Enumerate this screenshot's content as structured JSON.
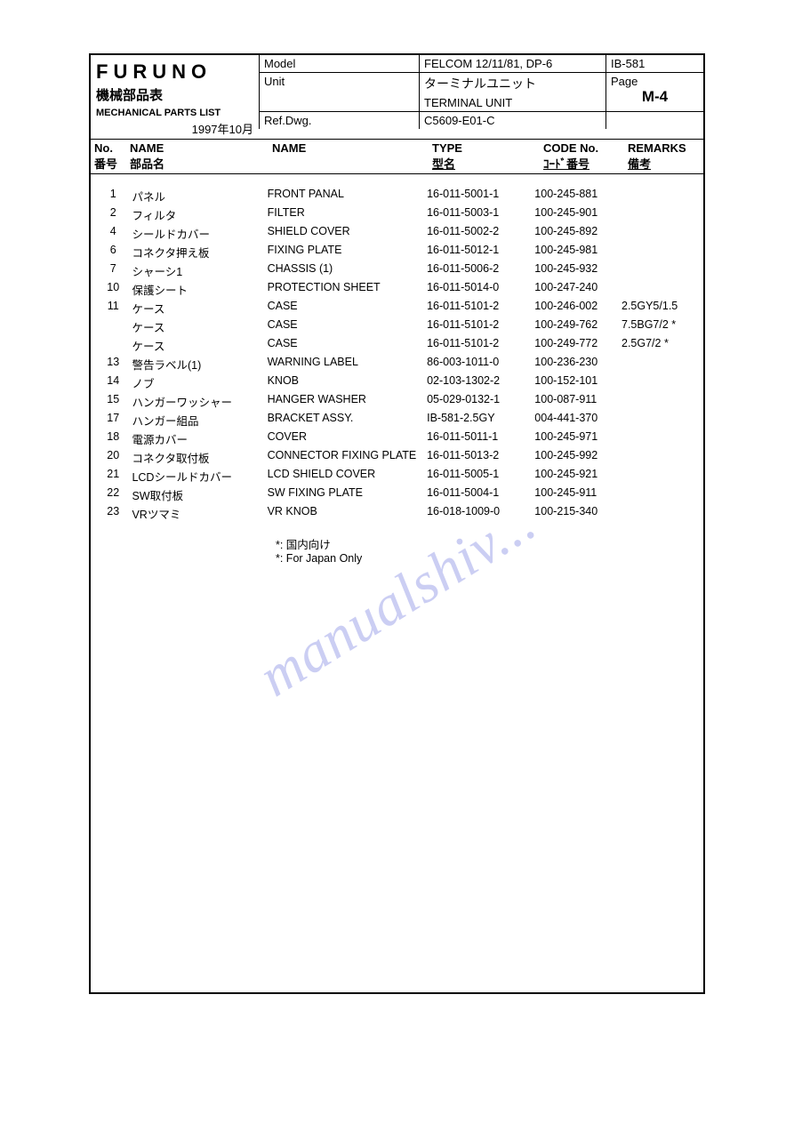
{
  "header": {
    "brand": "FURUNO",
    "jp_title": "機械部品表",
    "en_title": "MECHANICAL PARTS LIST",
    "date": "1997年10月",
    "model_label": "Model",
    "model_value": "FELCOM 12/11/81, DP-6",
    "ib_value": "IB-581",
    "unit_label": "Unit",
    "unit_jp": "ターミナルユニット",
    "unit_en": "TERMINAL UNIT",
    "page_label": "Page",
    "page_value": "M-4",
    "refdwg_label": "Ref.Dwg.",
    "refdwg_value": "C5609-E01-C"
  },
  "columns": {
    "no_en": "No.",
    "no_jp": "番号",
    "name_jp_hdr_en": "NAME",
    "name_jp_hdr_jp": "部品名",
    "name_en_hdr": "NAME",
    "type_en": "TYPE",
    "type_jp": "型名",
    "code_en": "CODE No.",
    "code_jp": "ｺｰﾄﾞ番号",
    "remarks_en": "REMARKS",
    "remarks_jp": "備考"
  },
  "rows": [
    {
      "no": "1",
      "jp": "パネル",
      "en": "FRONT PANAL",
      "type": "16-011-5001-1",
      "code": "100-245-881",
      "rem": ""
    },
    {
      "no": "2",
      "jp": "フィルタ",
      "en": "FILTER",
      "type": "16-011-5003-1",
      "code": "100-245-901",
      "rem": ""
    },
    {
      "no": "4",
      "jp": "シールドカバー",
      "en": "SHIELD COVER",
      "type": "16-011-5002-2",
      "code": "100-245-892",
      "rem": ""
    },
    {
      "no": "6",
      "jp": "コネクタ押え板",
      "en": "FIXING PLATE",
      "type": "16-011-5012-1",
      "code": "100-245-981",
      "rem": ""
    },
    {
      "no": "7",
      "jp": "シャーシ1",
      "en": "CHASSIS (1)",
      "type": "16-011-5006-2",
      "code": "100-245-932",
      "rem": ""
    },
    {
      "no": "10",
      "jp": "保護シート",
      "en": "PROTECTION SHEET",
      "type": "16-011-5014-0",
      "code": "100-247-240",
      "rem": ""
    },
    {
      "no": "11",
      "jp": "ケース",
      "en": "CASE",
      "type": "16-011-5101-2",
      "code": "100-246-002",
      "rem": "2.5GY5/1.5"
    },
    {
      "no": "",
      "jp": "ケース",
      "en": "CASE",
      "type": "16-011-5101-2",
      "code": "100-249-762",
      "rem": "7.5BG7/2 *"
    },
    {
      "no": "",
      "jp": "ケース",
      "en": "CASE",
      "type": "16-011-5101-2",
      "code": "100-249-772",
      "rem": "2.5G7/2 *"
    },
    {
      "no": "13",
      "jp": "警告ラベル(1)",
      "en": "WARNING LABEL",
      "type": "86-003-1011-0",
      "code": "100-236-230",
      "rem": ""
    },
    {
      "no": "14",
      "jp": "ノブ",
      "en": "KNOB",
      "type": "02-103-1302-2",
      "code": "100-152-101",
      "rem": ""
    },
    {
      "no": "15",
      "jp": "ハンガーワッシャー",
      "en": "HANGER WASHER",
      "type": "05-029-0132-1",
      "code": "100-087-911",
      "rem": ""
    },
    {
      "no": "17",
      "jp": "ハンガー組品",
      "en": "BRACKET ASSY.",
      "type": "IB-581-2.5GY",
      "code": "004-441-370",
      "rem": ""
    },
    {
      "no": "18",
      "jp": "電源カバー",
      "en": "COVER",
      "type": "16-011-5011-1",
      "code": "100-245-971",
      "rem": ""
    },
    {
      "no": "20",
      "jp": "コネクタ取付板",
      "en": "CONNECTOR FIXING PLATE",
      "type": "16-011-5013-2",
      "code": "100-245-992",
      "rem": ""
    },
    {
      "no": "21",
      "jp": "LCDシールドカバー",
      "en": "LCD SHIELD COVER",
      "type": "16-011-5005-1",
      "code": "100-245-921",
      "rem": ""
    },
    {
      "no": "22",
      "jp": "SW取付板",
      "en": "SW FIXING PLATE",
      "type": "16-011-5004-1",
      "code": "100-245-911",
      "rem": ""
    },
    {
      "no": "23",
      "jp": "VRツマミ",
      "en": "VR KNOB",
      "type": "16-018-1009-0",
      "code": "100-215-340",
      "rem": ""
    }
  ],
  "footnote": {
    "jp": "*: 国内向け",
    "en": "*: For Japan Only"
  },
  "watermark": "manualshiv...",
  "colors": {
    "border": "#000000",
    "background": "#ffffff",
    "watermark": "rgba(106,115,220,0.35)"
  }
}
